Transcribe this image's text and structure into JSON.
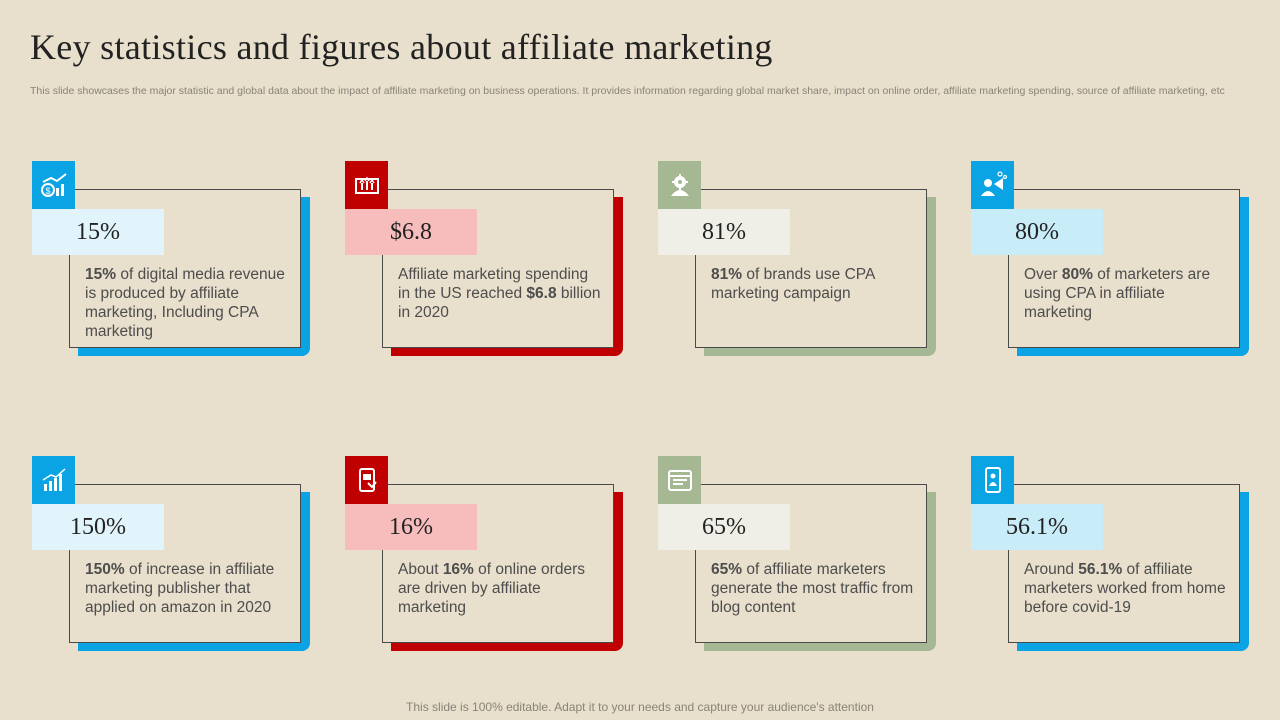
{
  "slide": {
    "title": "Key statistics and figures about affiliate marketing",
    "subtitle": "This slide showcases the major statistic and global data about the impact of affiliate marketing on business operations. It provides information regarding global market share, impact on online order, affiliate marketing spending, source of affiliate marketing, etc",
    "footer": "This slide is 100% editable. Adapt it to your needs and capture your audience's attention"
  },
  "cards": [
    {
      "value": "15%",
      "icon": "money-growth-chart-icon",
      "desc_bold1": "15%",
      "desc_text1": " of digital media revenue  is produced by affiliate marketing, Including CPA marketing",
      "desc_bold2": "",
      "desc_text2": ""
    },
    {
      "value": "$6.8",
      "icon": "growth-board-icon",
      "desc_bold1": "",
      "desc_text1": "Affiliate marketing spending in the US reached ",
      "desc_bold2": "$6.8",
      "desc_text2": " billion in 2020"
    },
    {
      "value": "81%",
      "icon": "settings-user-icon",
      "desc_bold1": "81%",
      "desc_text1": " of brands use CPA marketing campaign",
      "desc_bold2": "",
      "desc_text2": ""
    },
    {
      "value": "80%",
      "icon": "marketer-megaphone-icon",
      "desc_bold1": "",
      "desc_text1": "Over ",
      "desc_bold2": "80%",
      "desc_text2": " of marketers are using CPA in affiliate marketing"
    },
    {
      "value": "150%",
      "icon": "bar-chart-icon",
      "desc_bold1": "150%",
      "desc_text1": " of increase in affiliate marketing publisher that applied on amazon in 2020",
      "desc_bold2": "",
      "desc_text2": ""
    },
    {
      "value": "16%",
      "icon": "online-order-icon",
      "desc_bold1": "",
      "desc_text1": "About ",
      "desc_bold2": "16%",
      "desc_text2": " of online orders are driven by affiliate marketing"
    },
    {
      "value": "65%",
      "icon": "blog-content-icon",
      "desc_bold1": "65%",
      "desc_text1": " of affiliate marketers generate the most traffic from blog content",
      "desc_bold2": "",
      "desc_text2": ""
    },
    {
      "value": "56.1%",
      "icon": "mobile-user-icon",
      "desc_bold1": "",
      "desc_text1": "Around ",
      "desc_bold2": "56.1%",
      "desc_text2": " of affiliate marketers worked from home before covid-19"
    }
  ]
}
